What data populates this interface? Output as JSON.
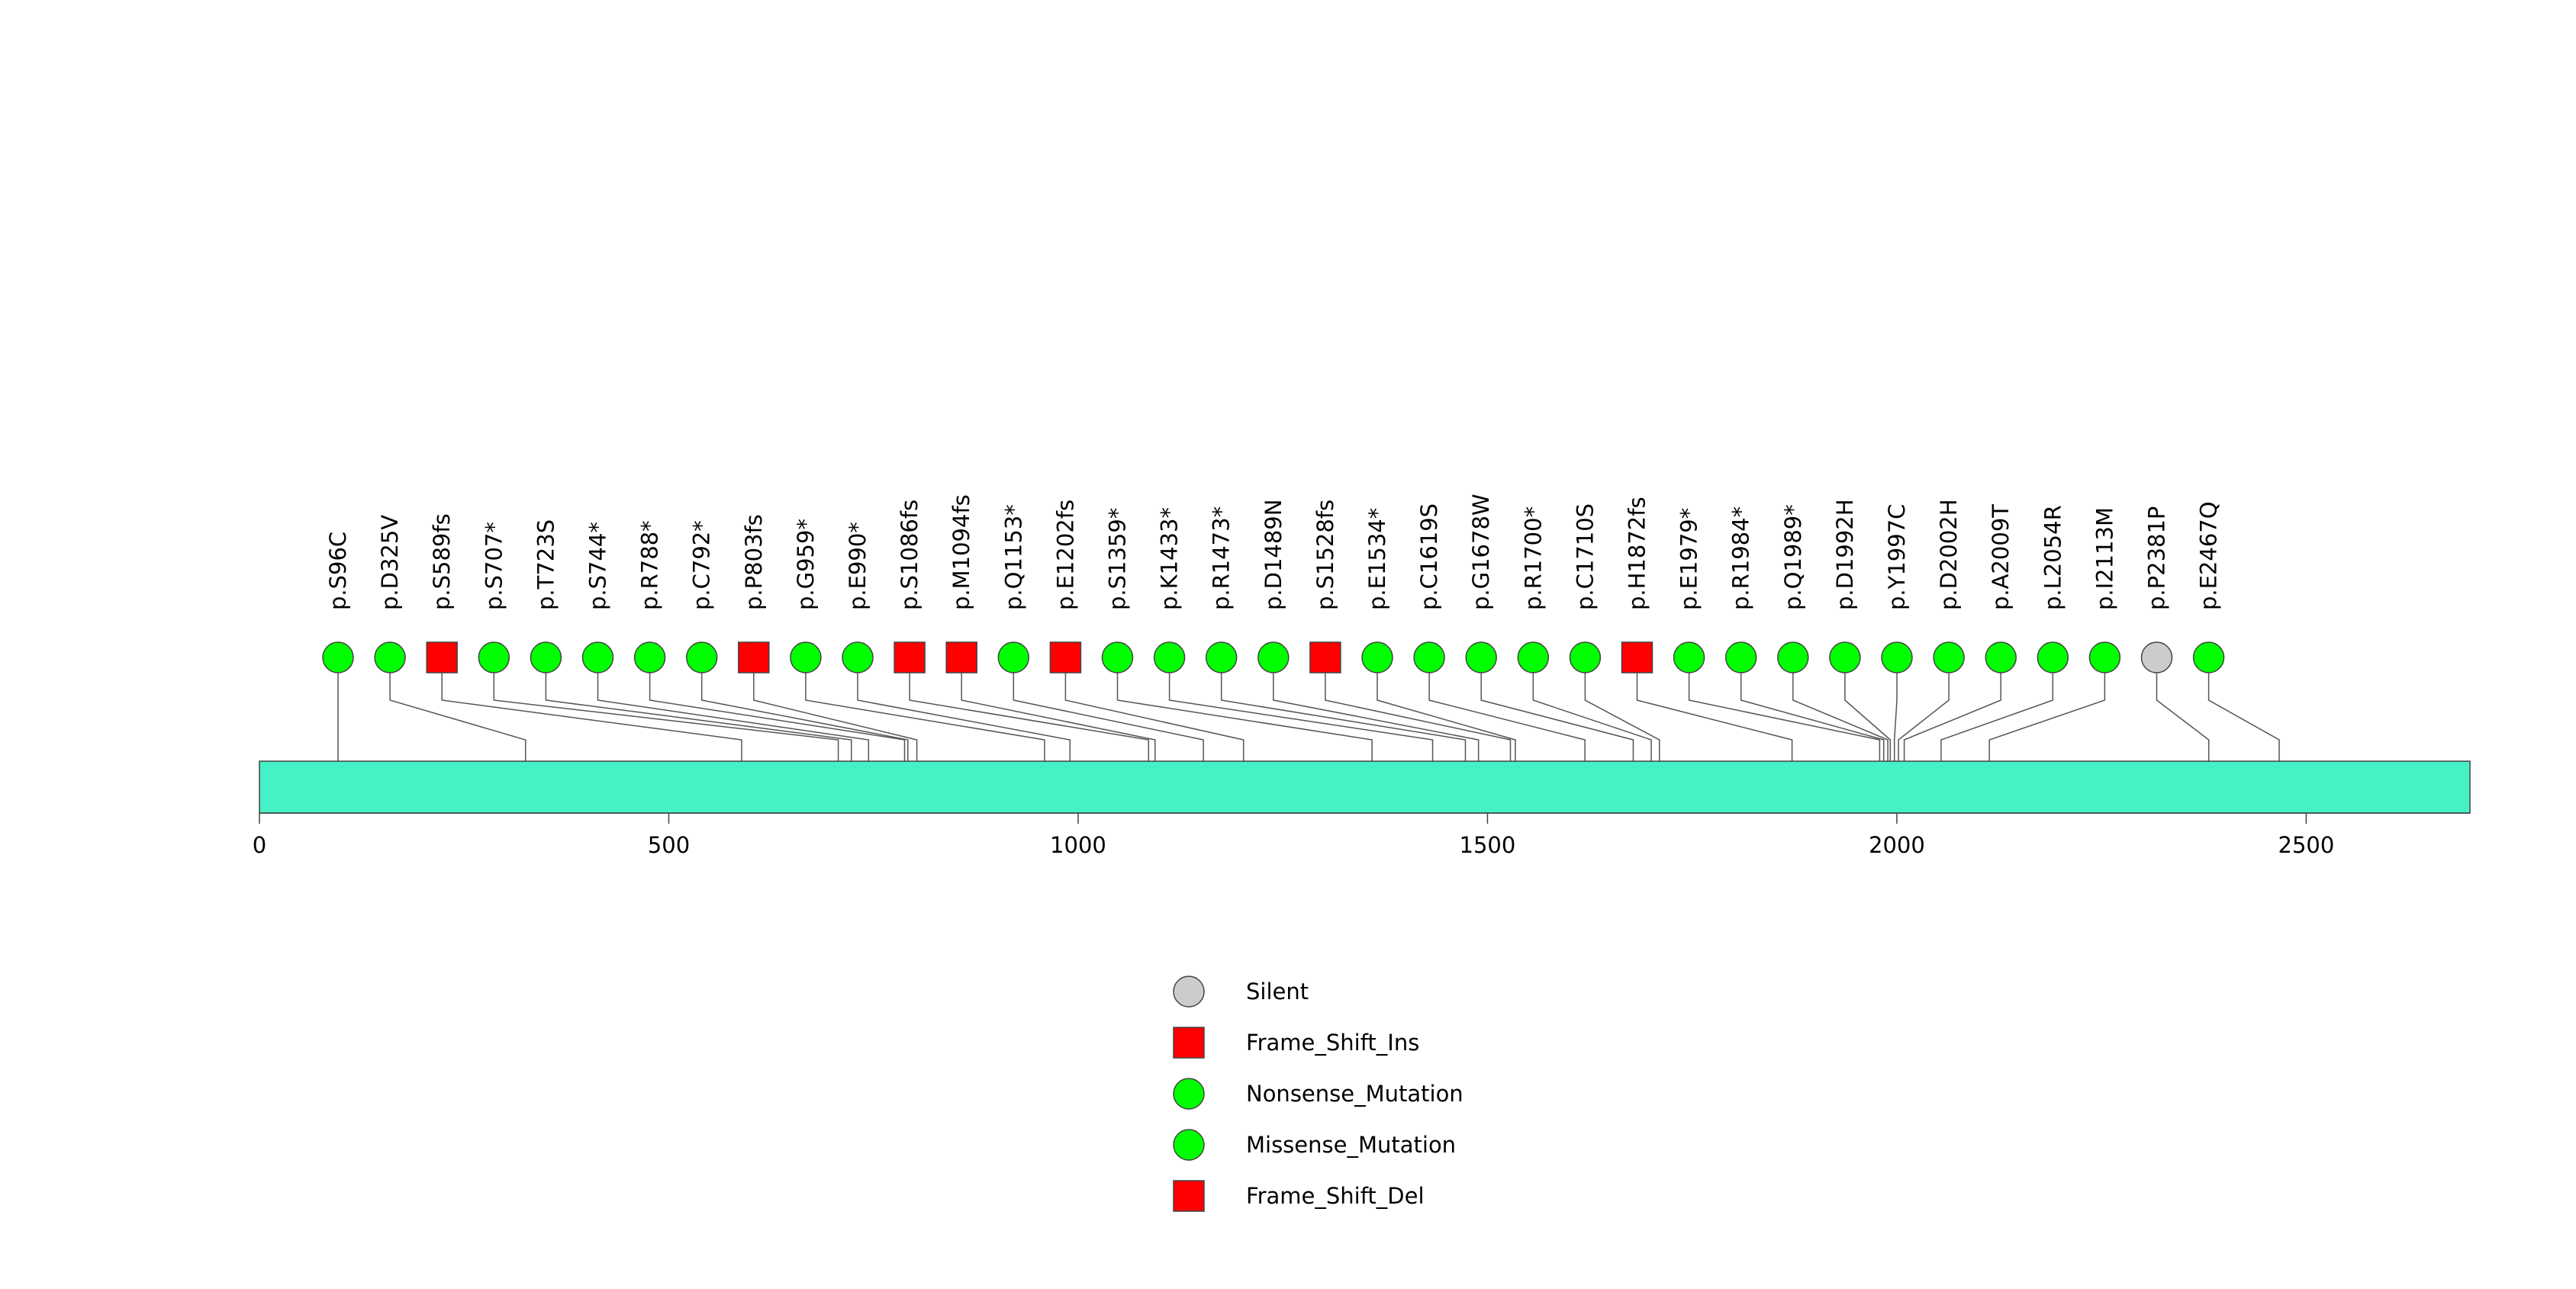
{
  "chart_data": {
    "type": "lollipop",
    "axis": {
      "min": 0,
      "max": 2700,
      "ticks": [
        0,
        500,
        1000,
        1500,
        2000,
        2500
      ]
    },
    "domain_color": "#44F2C6",
    "mutations": [
      {
        "label": "p.S96C",
        "position": 96,
        "type": "Missense_Mutation"
      },
      {
        "label": "p.D325V",
        "position": 325,
        "type": "Missense_Mutation"
      },
      {
        "label": "p.S589fs",
        "position": 589,
        "type": "Frame_Shift_Del"
      },
      {
        "label": "p.S707*",
        "position": 707,
        "type": "Nonsense_Mutation"
      },
      {
        "label": "p.T723S",
        "position": 723,
        "type": "Missense_Mutation"
      },
      {
        "label": "p.S744*",
        "position": 744,
        "type": "Nonsense_Mutation"
      },
      {
        "label": "p.R788*",
        "position": 788,
        "type": "Nonsense_Mutation"
      },
      {
        "label": "p.C792*",
        "position": 792,
        "type": "Nonsense_Mutation"
      },
      {
        "label": "p.P803fs",
        "position": 803,
        "type": "Frame_Shift_Del"
      },
      {
        "label": "p.G959*",
        "position": 959,
        "type": "Nonsense_Mutation"
      },
      {
        "label": "p.E990*",
        "position": 990,
        "type": "Nonsense_Mutation"
      },
      {
        "label": "p.S1086fs",
        "position": 1086,
        "type": "Frame_Shift_Del"
      },
      {
        "label": "p.M1094fs",
        "position": 1094,
        "type": "Frame_Shift_Ins"
      },
      {
        "label": "p.Q1153*",
        "position": 1153,
        "type": "Nonsense_Mutation"
      },
      {
        "label": "p.E1202fs",
        "position": 1202,
        "type": "Frame_Shift_Del"
      },
      {
        "label": "p.S1359*",
        "position": 1359,
        "type": "Nonsense_Mutation"
      },
      {
        "label": "p.K1433*",
        "position": 1433,
        "type": "Nonsense_Mutation"
      },
      {
        "label": "p.R1473*",
        "position": 1473,
        "type": "Nonsense_Mutation"
      },
      {
        "label": "p.D1489N",
        "position": 1489,
        "type": "Missense_Mutation"
      },
      {
        "label": "p.S1528fs",
        "position": 1528,
        "type": "Frame_Shift_Del"
      },
      {
        "label": "p.E1534*",
        "position": 1534,
        "type": "Nonsense_Mutation"
      },
      {
        "label": "p.C1619S",
        "position": 1619,
        "type": "Missense_Mutation"
      },
      {
        "label": "p.G1678W",
        "position": 1678,
        "type": "Missense_Mutation"
      },
      {
        "label": "p.R1700*",
        "position": 1700,
        "type": "Nonsense_Mutation"
      },
      {
        "label": "p.C1710S",
        "position": 1710,
        "type": "Missense_Mutation"
      },
      {
        "label": "p.H1872fs",
        "position": 1872,
        "type": "Frame_Shift_Del"
      },
      {
        "label": "p.E1979*",
        "position": 1979,
        "type": "Nonsense_Mutation"
      },
      {
        "label": "p.R1984*",
        "position": 1984,
        "type": "Nonsense_Mutation"
      },
      {
        "label": "p.Q1989*",
        "position": 1989,
        "type": "Nonsense_Mutation"
      },
      {
        "label": "p.D1992H",
        "position": 1992,
        "type": "Missense_Mutation"
      },
      {
        "label": "p.Y1997C",
        "position": 1997,
        "type": "Missense_Mutation"
      },
      {
        "label": "p.D2002H",
        "position": 2002,
        "type": "Missense_Mutation"
      },
      {
        "label": "p.A2009T",
        "position": 2009,
        "type": "Missense_Mutation"
      },
      {
        "label": "p.L2054R",
        "position": 2054,
        "type": "Missense_Mutation"
      },
      {
        "label": "p.I2113M",
        "position": 2113,
        "type": "Missense_Mutation"
      },
      {
        "label": "p.P2381P",
        "position": 2381,
        "type": "Silent"
      },
      {
        "label": "p.E2467Q",
        "position": 2467,
        "type": "Missense_Mutation"
      }
    ],
    "legend": [
      {
        "label": "Silent",
        "shape": "circle",
        "color": "#CCCCCC"
      },
      {
        "label": "Frame_Shift_Ins",
        "shape": "square",
        "color": "#FF0000"
      },
      {
        "label": "Nonsense_Mutation",
        "shape": "circle",
        "color": "#00FF00"
      },
      {
        "label": "Missense_Mutation",
        "shape": "circle",
        "color": "#00FF00"
      },
      {
        "label": "Frame_Shift_Del",
        "shape": "square",
        "color": "#FF0000"
      }
    ]
  }
}
